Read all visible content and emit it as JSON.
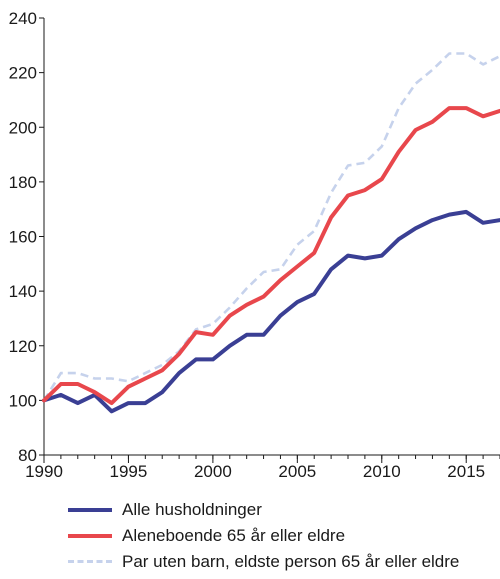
{
  "chart_data": {
    "type": "line",
    "title": "",
    "xlabel": "",
    "ylabel": "",
    "xlim": [
      1990,
      2017
    ],
    "ylim": [
      80,
      240
    ],
    "x_ticks": [
      1990,
      1995,
      2000,
      2005,
      2010,
      2015
    ],
    "y_ticks": [
      80,
      100,
      120,
      140,
      160,
      180,
      200,
      220,
      240
    ],
    "grid": false,
    "legend_position": "bottom",
    "x": [
      1990,
      1991,
      1992,
      1993,
      1994,
      1995,
      1996,
      1997,
      1998,
      1999,
      2000,
      2001,
      2002,
      2003,
      2004,
      2005,
      2006,
      2007,
      2008,
      2009,
      2010,
      2011,
      2012,
      2013,
      2014,
      2015,
      2016,
      2017
    ],
    "series": [
      {
        "name": "Alle husholdninger",
        "color": "#3a3f94",
        "style": "solid",
        "values": [
          100,
          102,
          99,
          102,
          96,
          99,
          99,
          103,
          110,
          115,
          115,
          120,
          124,
          124,
          131,
          136,
          139,
          148,
          153,
          152,
          153,
          159,
          163,
          166,
          168,
          169,
          165,
          166
        ]
      },
      {
        "name": "Aleneboende 65 år eller eldre",
        "color": "#e8474c",
        "style": "solid",
        "values": [
          100,
          106,
          106,
          103,
          99,
          105,
          108,
          111,
          117,
          125,
          124,
          131,
          135,
          138,
          144,
          149,
          154,
          167,
          175,
          177,
          181,
          191,
          199,
          202,
          207,
          207,
          204,
          206
        ]
      },
      {
        "name": "Par uten barn, eldste person 65 år eller eldre",
        "color": "#c6d2ec",
        "style": "dashed",
        "values": [
          100,
          110,
          110,
          108,
          108,
          107,
          110,
          113,
          118,
          126,
          128,
          134,
          141,
          147,
          148,
          157,
          162,
          176,
          186,
          187,
          193,
          207,
          216,
          221,
          227,
          227,
          223,
          226
        ]
      }
    ]
  }
}
